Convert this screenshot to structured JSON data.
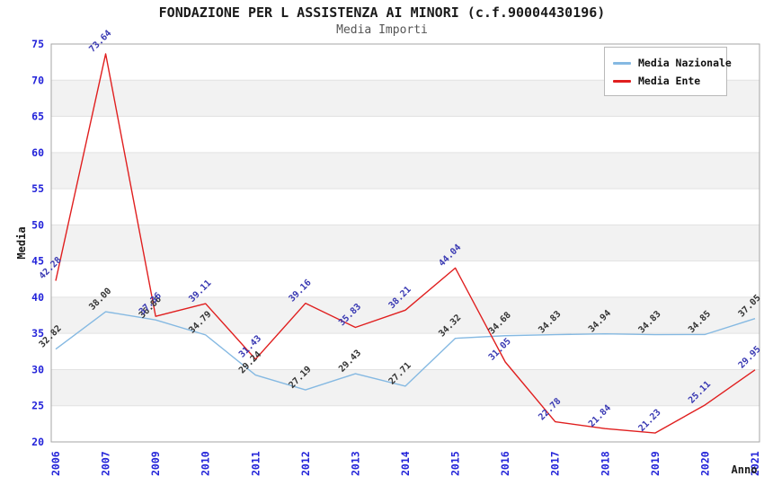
{
  "chart_data": {
    "type": "line",
    "title": "FONDAZIONE PER L ASSISTENZA AI MINORI (c.f.90004430196)",
    "subtitle": "Media Importi",
    "xlabel": "Anno",
    "ylabel": "Media",
    "categories": [
      "2006",
      "2007",
      "2009",
      "2010",
      "2011",
      "2012",
      "2013",
      "2014",
      "2015",
      "2016",
      "2017",
      "2018",
      "2019",
      "2020",
      "2021"
    ],
    "y_ticks": [
      20,
      25,
      30,
      35,
      40,
      45,
      50,
      55,
      60,
      65,
      70,
      75
    ],
    "ylim": [
      20,
      75
    ],
    "grid": "horizontal, alternating gray bands every 5 units",
    "legend_position": "top-right",
    "series": [
      {
        "name": "Media Nazionale",
        "color": "#85b9e2",
        "label_color": "#333333",
        "values": [
          32.82,
          38.0,
          36.86,
          34.79,
          29.24,
          27.19,
          29.43,
          27.71,
          34.32,
          34.68,
          34.83,
          34.94,
          34.83,
          34.85,
          37.05
        ],
        "labels": [
          "32.82",
          "38.00",
          "36.86",
          "34.79",
          "29.24",
          "27.19",
          "29.43",
          "27.71",
          "34.32",
          "34.68",
          "34.83",
          "34.94",
          "34.83",
          "34.85",
          "37.05"
        ]
      },
      {
        "name": "Media Ente",
        "color": "#e01f1f",
        "label_color": "#3838b2",
        "values": [
          42.28,
          73.64,
          37.36,
          39.11,
          31.43,
          39.16,
          35.83,
          38.21,
          44.04,
          31.05,
          22.78,
          21.84,
          21.23,
          25.11,
          29.95
        ],
        "labels": [
          "42.28",
          "73.64",
          "37.36",
          "39.11",
          "31.43",
          "39.16",
          "35.83",
          "38.21",
          "44.04",
          "31.05",
          "22.78",
          "21.84",
          "21.23",
          "25.11",
          "29.95"
        ]
      }
    ],
    "colors": {
      "band": "#f2f2f2",
      "grid": "#e2e2e2",
      "frame": "#a6a6a6",
      "tick_text": "#2323d9"
    }
  }
}
